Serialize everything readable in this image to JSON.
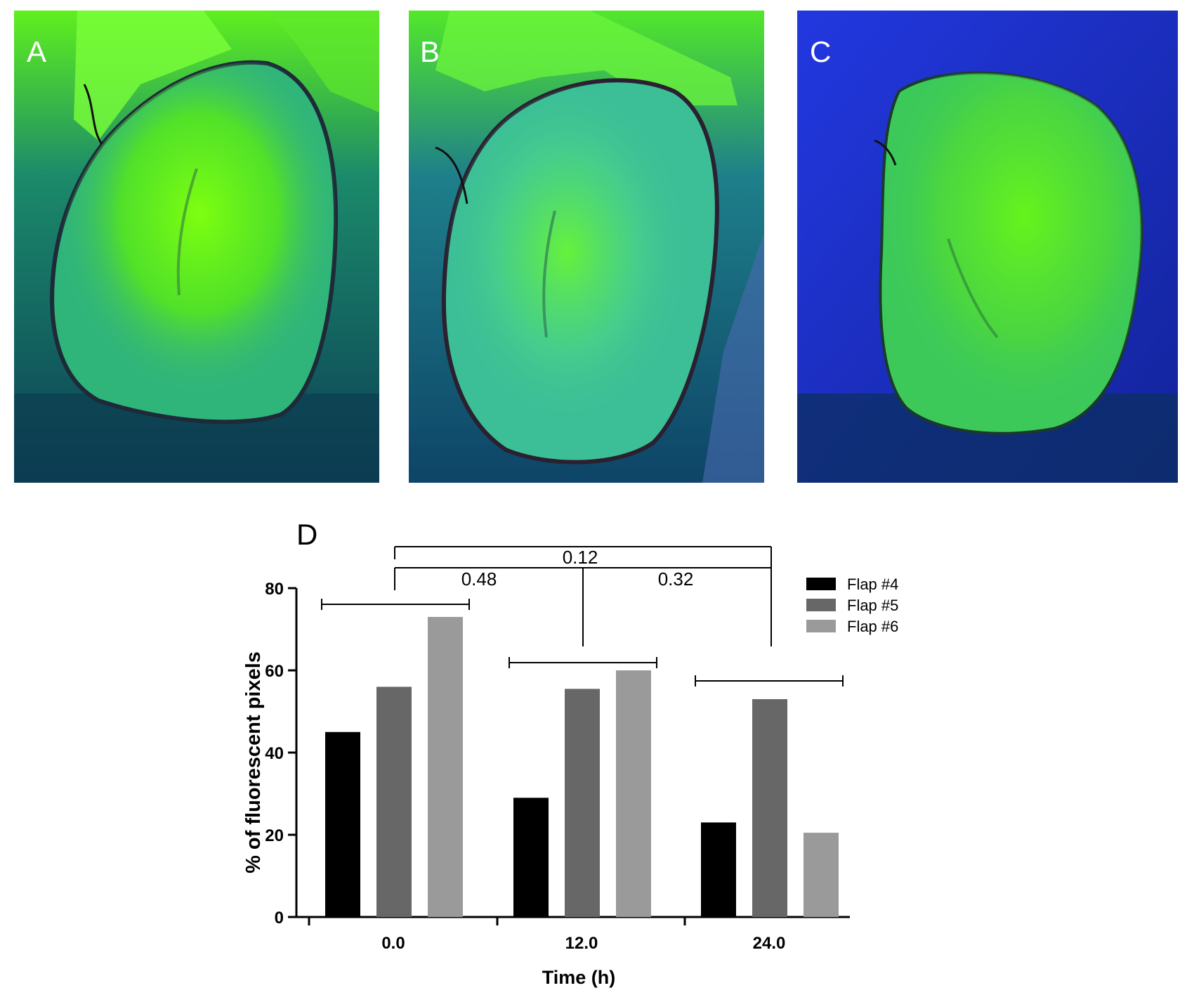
{
  "panels": [
    {
      "label": "A",
      "colors": {
        "bg": "#0c3f56",
        "tissue": "#2fb57a",
        "glow": "#6cff12",
        "edge": "#1e2a38"
      }
    },
    {
      "label": "B",
      "colors": {
        "bg": "#0e4467",
        "tissue": "#3cbf96",
        "glow": "#5cf03a",
        "edge": "#2a2030"
      }
    },
    {
      "label": "C",
      "colors": {
        "bg": "#1b2fd0",
        "tissue": "#3cc95a",
        "glow": "#58f21c",
        "edge": "#1a3a2a"
      }
    }
  ],
  "chart_data": {
    "type": "bar",
    "panel_label": "D",
    "categories": [
      "0.0",
      "12.0",
      "24.0"
    ],
    "series": [
      {
        "name": "Flap #4",
        "color": "#000000",
        "values": [
          45,
          29,
          23
        ]
      },
      {
        "name": "Flap #5",
        "color": "#676767",
        "values": [
          56,
          55.5,
          53
        ]
      },
      {
        "name": "Flap #6",
        "color": "#9a9a9a",
        "values": [
          73,
          60,
          20.5
        ]
      }
    ],
    "xlabel": "Time (h)",
    "ylabel": "% of fluorescent pixels",
    "ylim": [
      0,
      80
    ],
    "yticks": [
      "0",
      "20",
      "40",
      "60",
      "80"
    ],
    "legend_position": "top-right",
    "significance": [
      {
        "between": [
          "0.0",
          "24.0"
        ],
        "p": "0.12"
      },
      {
        "between": [
          "0.0",
          "12.0"
        ],
        "p": "0.48"
      },
      {
        "between": [
          "12.0",
          "24.0"
        ],
        "p": "0.32"
      }
    ]
  }
}
